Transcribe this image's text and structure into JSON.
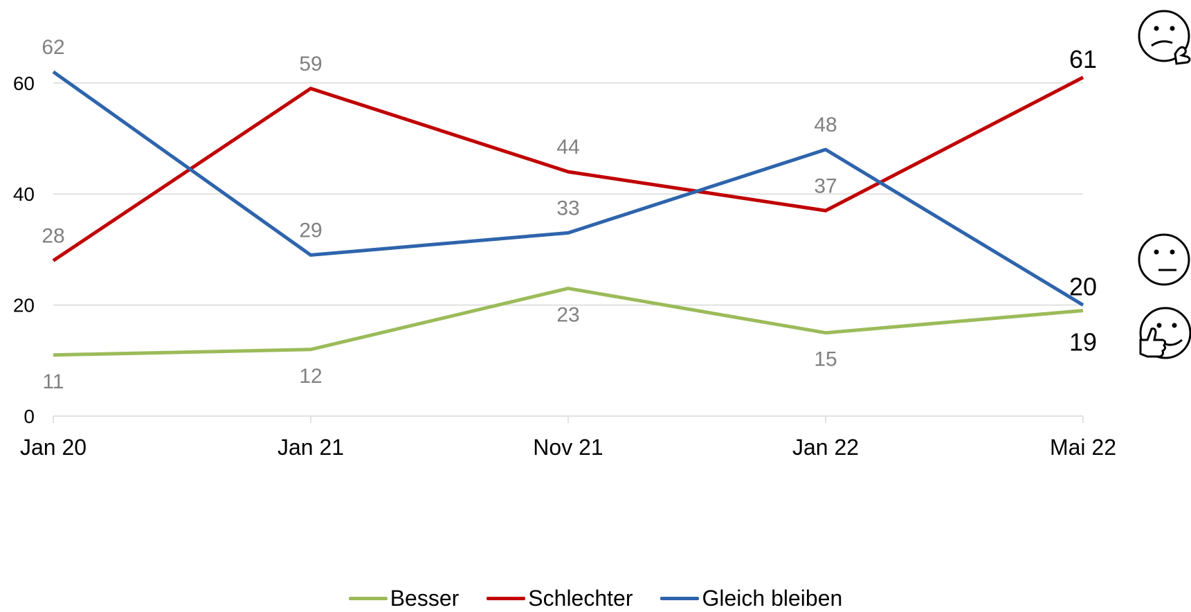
{
  "chart_data": {
    "type": "line",
    "categories": [
      "Jan 20",
      "Jan 21",
      "Nov 21",
      "Jan 22",
      "Mai 22"
    ],
    "yticks": [
      0,
      20,
      40,
      60
    ],
    "ylim": [
      0,
      60
    ],
    "grid": true,
    "legend": "bottom",
    "series": [
      {
        "name": "Besser",
        "color": "#9bbb59",
        "values": [
          11,
          12,
          23,
          15,
          19
        ],
        "labels": [
          "11",
          "12",
          "23",
          "15",
          "19"
        ]
      },
      {
        "name": "Schlechter",
        "color": "#c00000",
        "values": [
          28,
          59,
          44,
          37,
          61
        ],
        "labels": [
          "28",
          "59",
          "44",
          "37",
          "61"
        ]
      },
      {
        "name": "Gleich bleiben",
        "color": "#2e64ac",
        "values": [
          62,
          29,
          33,
          48,
          20
        ],
        "labels": [
          "62",
          "29",
          "33",
          "48",
          "20"
        ]
      }
    ],
    "icons": [
      "thinking-face-icon",
      "neutral-face-icon",
      "thumbs-up-face-icon"
    ]
  }
}
